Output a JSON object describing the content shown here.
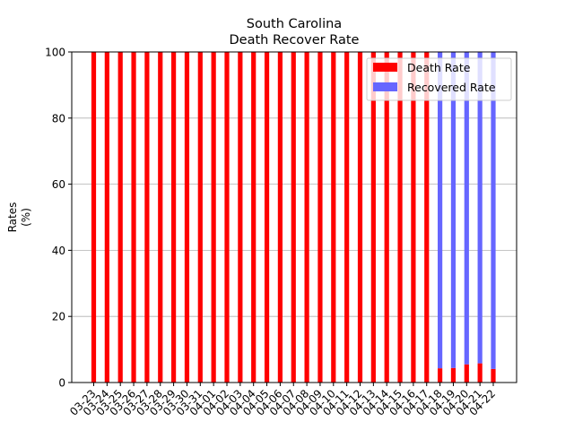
{
  "chart_data": {
    "type": "bar",
    "stacked": true,
    "title": "South Carolina",
    "subtitle": "Death Recover Rate",
    "xlabel": "",
    "ylabel_lines": [
      "Rates",
      "(%)"
    ],
    "ylim": [
      0,
      100
    ],
    "yticks": [
      0,
      20,
      40,
      60,
      80,
      100
    ],
    "grid": "y",
    "legend_position": "top-right",
    "categories": [
      "03-23",
      "03-24",
      "03-25",
      "03-26",
      "03-27",
      "03-28",
      "03-29",
      "03-30",
      "03-31",
      "04-01",
      "04-02",
      "04-03",
      "04-04",
      "04-05",
      "04-06",
      "04-07",
      "04-08",
      "04-09",
      "04-10",
      "04-11",
      "04-12",
      "04-13",
      "04-14",
      "04-15",
      "04-16",
      "04-17",
      "04-18",
      "04-19",
      "04-20",
      "04-21",
      "04-22"
    ],
    "series": [
      {
        "name": "Death Rate",
        "color": "#ff0000",
        "values": [
          100,
          100,
          100,
          100,
          100,
          100,
          100,
          100,
          100,
          100,
          100,
          100,
          100,
          100,
          100,
          100,
          100,
          100,
          100,
          100,
          100,
          100,
          100,
          100,
          100,
          100,
          4.3,
          4.4,
          5.5,
          5.8,
          4.1
        ]
      },
      {
        "name": "Recovered Rate",
        "color": "#6666ff",
        "values": [
          0,
          0,
          0,
          0,
          0,
          0,
          0,
          0,
          0,
          0,
          0,
          0,
          0,
          0,
          0,
          0,
          0,
          0,
          0,
          0,
          0,
          0,
          0,
          0,
          0,
          0,
          95.7,
          95.6,
          94.5,
          94.2,
          95.9
        ]
      }
    ]
  }
}
